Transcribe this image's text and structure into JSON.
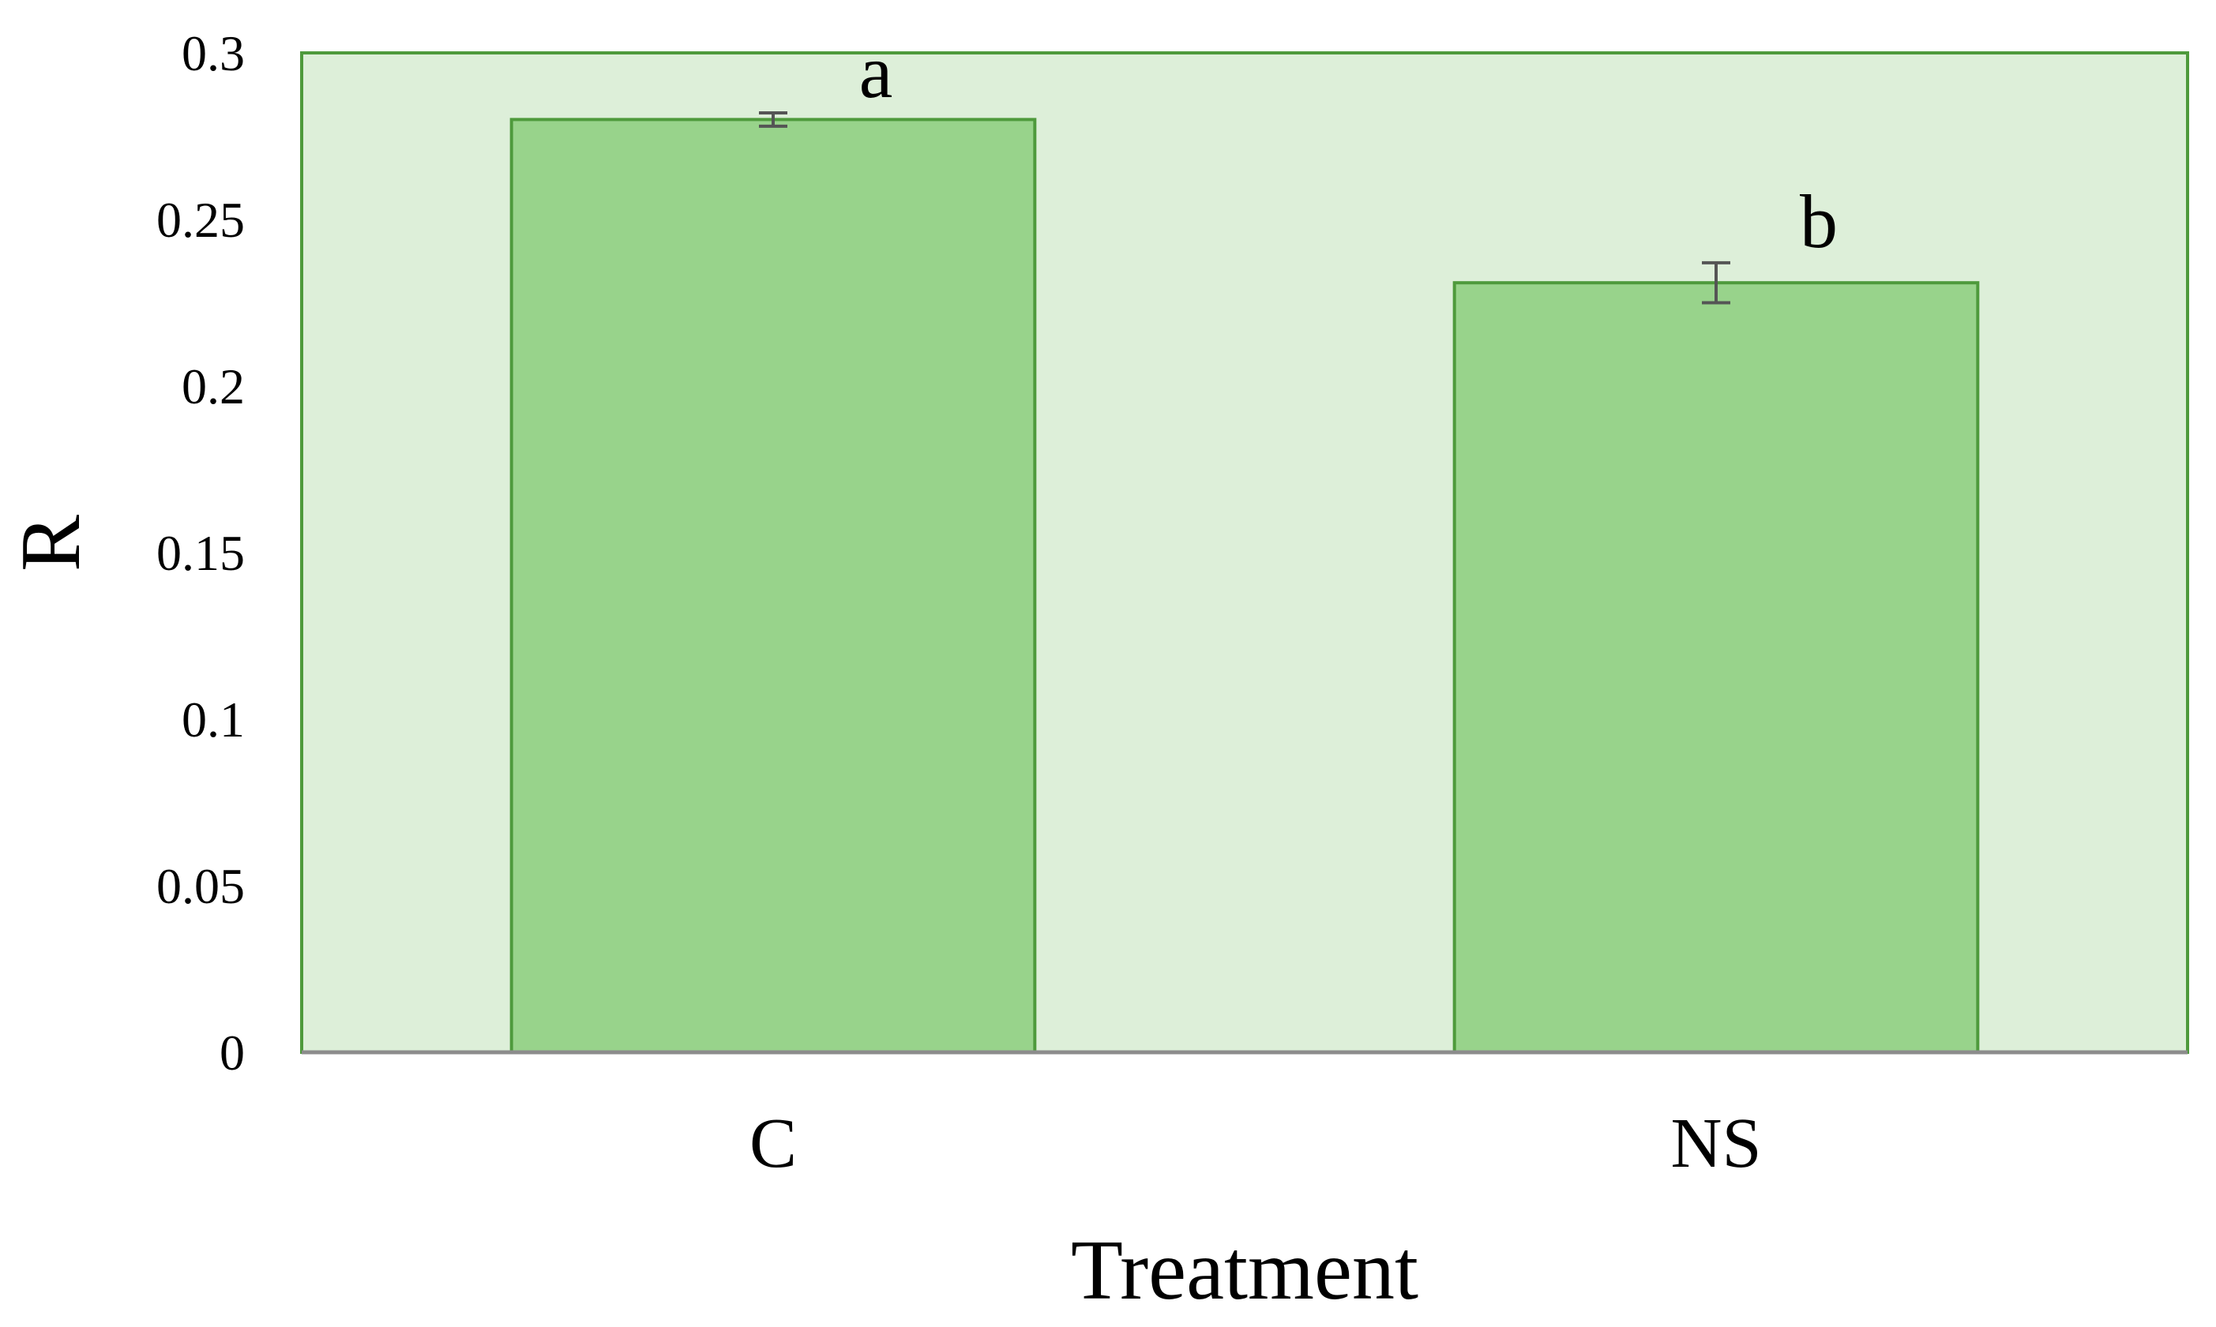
{
  "chart_data": {
    "type": "bar",
    "categories": [
      "C",
      "NS"
    ],
    "values": [
      0.28,
      0.231
    ],
    "error": [
      0.002,
      0.006
    ],
    "significance_letters": [
      "a",
      "b"
    ],
    "xlabel": "Treatment",
    "ylabel": "R",
    "ylim": [
      0,
      0.3
    ],
    "yticks": [
      0,
      0.05,
      0.1,
      0.15,
      0.2,
      0.25,
      0.3
    ],
    "ytick_labels": [
      "0",
      "0.05",
      "0.1",
      "0.15",
      "0.2",
      "0.25",
      "0.3"
    ],
    "grid": false,
    "legend": "none"
  },
  "colors": {
    "plot_background": "#DDEFD9",
    "plot_border": "#4E9A3C",
    "bar_fill": "#98D38B",
    "bar_stroke": "#4E9A3C",
    "error_bar": "#555555",
    "axis_line": "#8C8C8C"
  }
}
